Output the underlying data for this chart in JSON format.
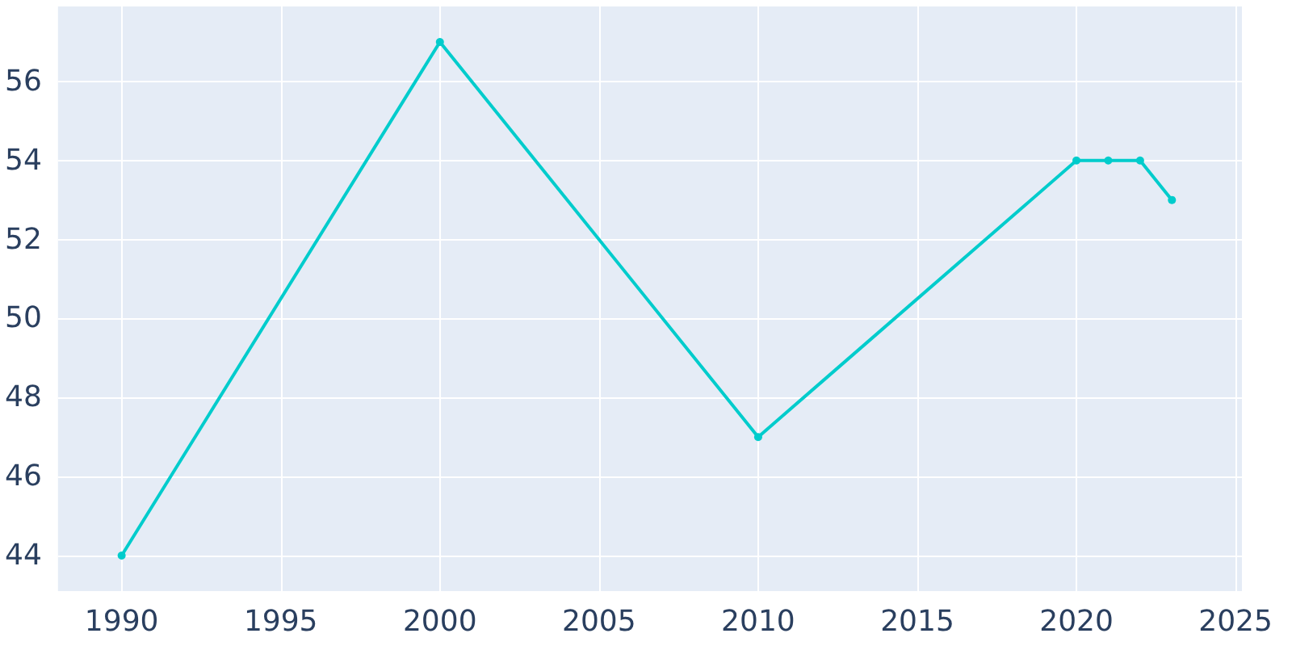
{
  "chart_data": {
    "type": "line",
    "x": [
      1990,
      2000,
      2010,
      2020,
      2021,
      2022,
      2023
    ],
    "series": [
      {
        "color": "#00cccc",
        "values": [
          44,
          57,
          47,
          54,
          54,
          54,
          53
        ]
      }
    ],
    "xlim": [
      1988,
      2025.2
    ],
    "xticks": [
      1990,
      1995,
      2000,
      2005,
      2010,
      2015,
      2020,
      2025
    ],
    "ylim": [
      43.1,
      57.9
    ],
    "yticks": [
      44,
      46,
      48,
      50,
      52,
      54,
      56
    ],
    "grid": true,
    "marker": "circle",
    "line_style": "solid"
  }
}
